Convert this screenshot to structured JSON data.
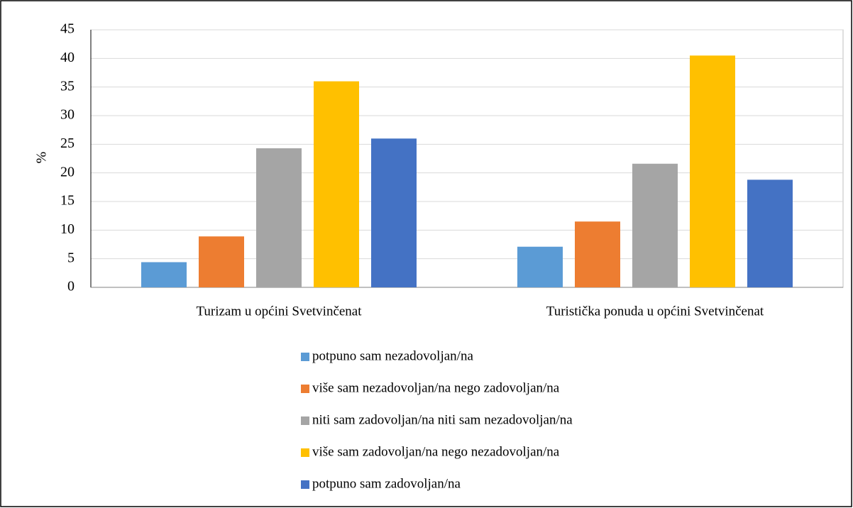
{
  "chart_data": {
    "type": "bar",
    "y_label": "%",
    "categories": [
      "Turizam u općini Svetvinčenat",
      "Turistička ponuda u općini Svetvinčenat"
    ],
    "series": [
      {
        "name": "potpuno sam nezadovoljan/na",
        "color": "#5b9bd5",
        "values": [
          4.4,
          7.1
        ]
      },
      {
        "name": "više sam nezadovoljan/na nego zadovoljan/na",
        "color": "#ed7d31",
        "values": [
          8.9,
          11.5
        ]
      },
      {
        "name": "niti sam zadovoljan/na niti sam nezadovoljan/na",
        "color": "#a5a5a5",
        "values": [
          24.3,
          21.6
        ]
      },
      {
        "name": "više sam zadovoljan/na nego nezadovoljan/na",
        "color": "#ffc000",
        "values": [
          36.0,
          40.5
        ]
      },
      {
        "name": "potpuno sam zadovoljan/na",
        "color": "#4472c4",
        "values": [
          26.0,
          18.8
        ]
      }
    ],
    "ylim": [
      0,
      45
    ],
    "yticks": [
      0,
      5,
      10,
      15,
      20,
      25,
      30,
      35,
      40,
      45
    ],
    "grid": true,
    "legend": "bottom"
  }
}
